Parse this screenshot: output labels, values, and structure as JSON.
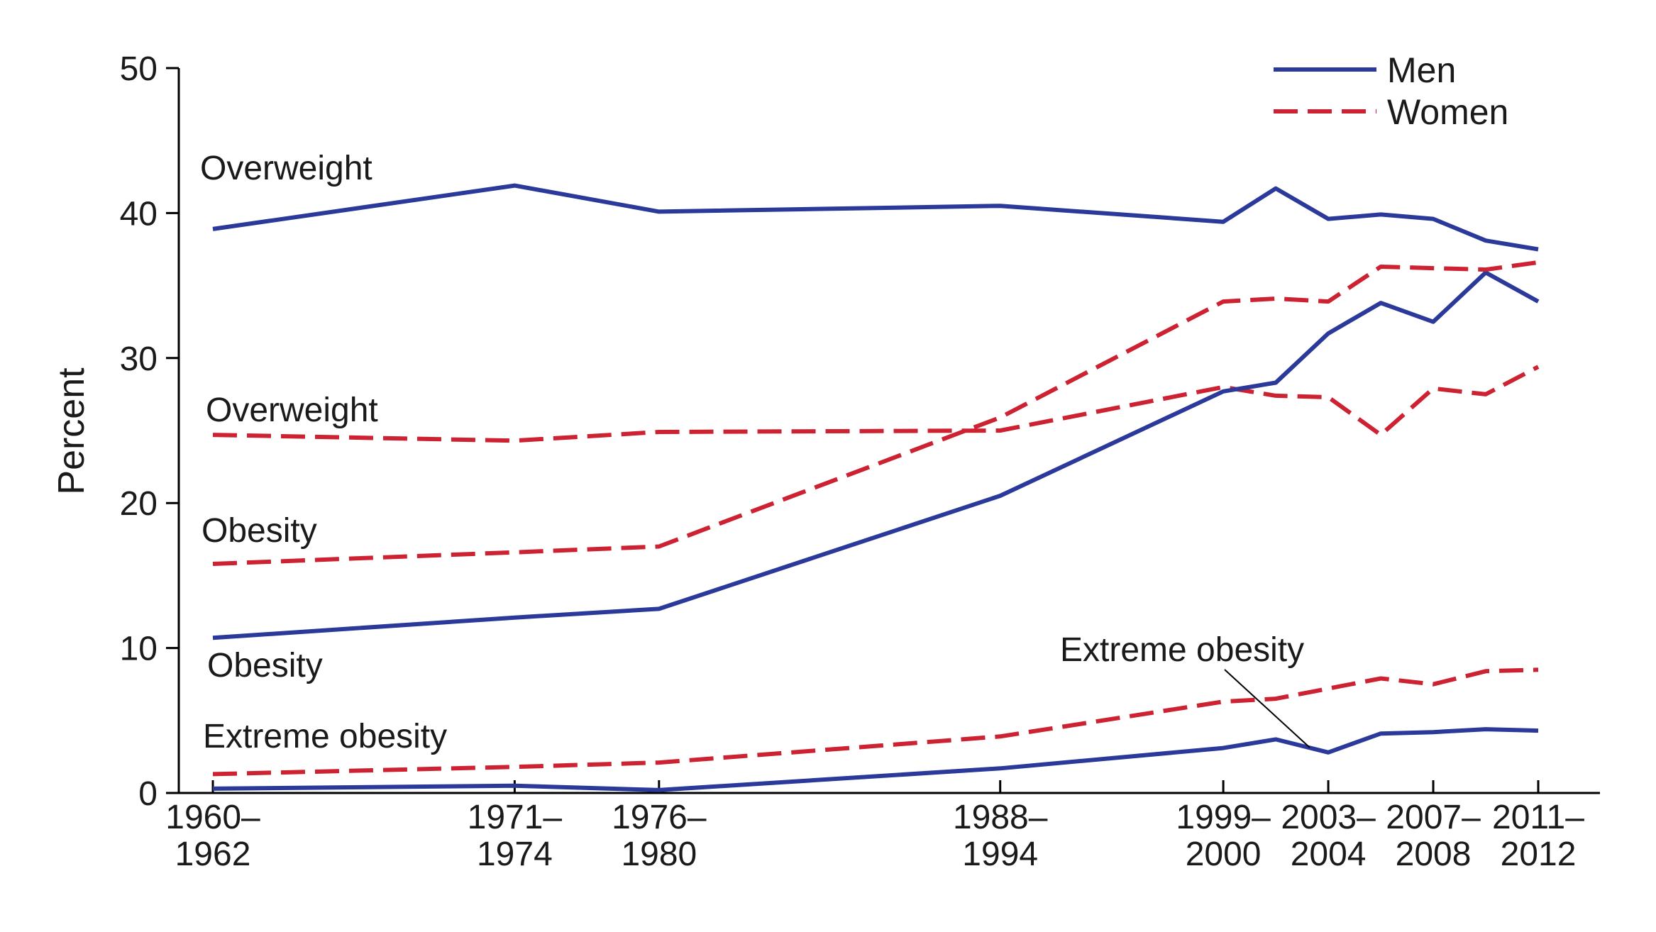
{
  "chart_data": {
    "type": "line",
    "title": "",
    "xlabel": "",
    "ylabel": "Percent",
    "ylim": [
      0,
      50
    ],
    "yticks": [
      0,
      10,
      20,
      30,
      40,
      50
    ],
    "x_tick_labels": [
      {
        "x": 1961,
        "lines": [
          "1960–",
          "1962"
        ]
      },
      {
        "x": 1972.5,
        "lines": [
          "1971–",
          "1974"
        ]
      },
      {
        "x": 1978,
        "lines": [
          "1976–",
          "1980"
        ]
      },
      {
        "x": 1991,
        "lines": [
          "1988–",
          "1994"
        ]
      },
      {
        "x": 1999.5,
        "lines": [
          "1999–",
          "2000"
        ]
      },
      {
        "x": 2003.5,
        "lines": [
          "2003–",
          "2004"
        ]
      },
      {
        "x": 2007.5,
        "lines": [
          "2007–",
          "2008"
        ]
      },
      {
        "x": 2011.5,
        "lines": [
          "2011–",
          "2012"
        ]
      }
    ],
    "legend": [
      {
        "label": "Men",
        "color": "#2b3a9a",
        "style": "solid"
      },
      {
        "label": "Women",
        "color": "#cc2232",
        "style": "dashed"
      }
    ],
    "series": [
      {
        "name": "Men – Overweight",
        "group": "Men",
        "x": [
          1961,
          1972.5,
          1978,
          1991,
          1999.5,
          2001.5,
          2003.5,
          2005.5,
          2007.5,
          2009.5,
          2011.5
        ],
        "values": [
          38.9,
          41.9,
          40.1,
          40.5,
          39.4,
          41.7,
          39.6,
          39.9,
          39.6,
          38.1,
          37.5
        ]
      },
      {
        "name": "Women – Overweight",
        "group": "Women",
        "x": [
          1961,
          1972.5,
          1978,
          1991,
          1999.5,
          2001.5,
          2003.5,
          2005.5,
          2007.5,
          2009.5,
          2011.5
        ],
        "values": [
          24.7,
          24.3,
          24.9,
          25.0,
          28.0,
          27.4,
          27.3,
          24.7,
          27.9,
          27.5,
          29.4
        ]
      },
      {
        "name": "Men – Obesity",
        "group": "Men",
        "x": [
          1961,
          1972.5,
          1978,
          1991,
          1999.5,
          2001.5,
          2003.5,
          2005.5,
          2007.5,
          2009.5,
          2011.5
        ],
        "values": [
          10.7,
          12.1,
          12.7,
          20.5,
          27.7,
          28.3,
          31.7,
          33.8,
          32.5,
          35.9,
          33.9
        ]
      },
      {
        "name": "Women – Obesity",
        "group": "Women",
        "x": [
          1961,
          1972.5,
          1978,
          1991,
          1999.5,
          2001.5,
          2003.5,
          2005.5,
          2007.5,
          2009.5,
          2011.5
        ],
        "values": [
          15.8,
          16.6,
          17.0,
          25.9,
          33.9,
          34.1,
          33.9,
          36.3,
          36.2,
          36.1,
          36.6
        ]
      },
      {
        "name": "Men – Extreme obesity",
        "group": "Men",
        "x": [
          1961,
          1972.5,
          1978,
          1991,
          1999.5,
          2001.5,
          2003.5,
          2005.5,
          2007.5,
          2009.5,
          2011.5
        ],
        "values": [
          0.3,
          0.5,
          0.2,
          1.7,
          3.1,
          3.7,
          2.8,
          4.1,
          4.2,
          4.4,
          4.3
        ]
      },
      {
        "name": "Women – Extreme obesity",
        "group": "Women",
        "x": [
          1961,
          1972.5,
          1978,
          1991,
          1999.5,
          2001.5,
          2003.5,
          2005.5,
          2007.5,
          2009.5,
          2011.5
        ],
        "values": [
          1.3,
          1.8,
          2.1,
          3.9,
          6.3,
          6.5,
          7.2,
          7.9,
          7.5,
          8.4,
          8.5
        ]
      }
    ],
    "annotations": [
      {
        "id": "overweight_men",
        "text": "Overweight"
      },
      {
        "id": "overweight_women",
        "text": "Overweight"
      },
      {
        "id": "obesity_women",
        "text": "Obesity"
      },
      {
        "id": "obesity_men",
        "text": "Obesity"
      },
      {
        "id": "extreme_women",
        "text": "Extreme obesity"
      },
      {
        "id": "extreme_men",
        "text": "Extreme obesity"
      }
    ]
  }
}
